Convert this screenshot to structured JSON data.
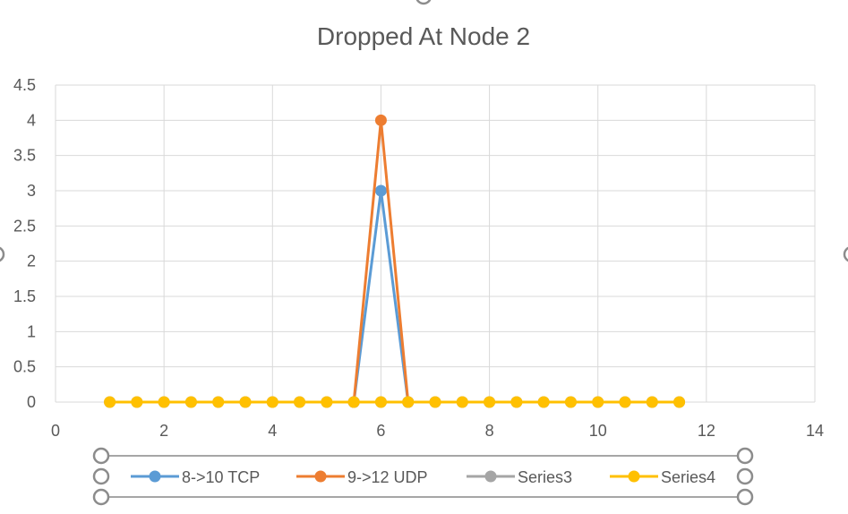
{
  "chart_data": {
    "type": "scatter",
    "title": "Dropped At Node 2",
    "xlabel": "",
    "ylabel": "",
    "xlim": [
      0,
      14
    ],
    "ylim": [
      0,
      4.5
    ],
    "x_ticks": [
      0,
      2,
      4,
      6,
      8,
      10,
      12,
      14
    ],
    "y_ticks": [
      0,
      0.5,
      1,
      1.5,
      2,
      2.5,
      3,
      3.5,
      4,
      4.5
    ],
    "grid": true,
    "legend_position": "bottom",
    "series": [
      {
        "name": "8->10 TCP",
        "color": "#5B9BD5",
        "points": [
          [
            5.5,
            0
          ],
          [
            6,
            3
          ],
          [
            6.5,
            0
          ]
        ]
      },
      {
        "name": "9->12 UDP",
        "color": "#ED7D31",
        "points": [
          [
            5.5,
            0
          ],
          [
            6,
            4
          ],
          [
            6.5,
            0
          ]
        ]
      },
      {
        "name": "Series3",
        "color": "#A5A5A5",
        "points": [
          [
            1,
            0
          ],
          [
            1.5,
            0
          ],
          [
            2,
            0
          ],
          [
            2.5,
            0
          ],
          [
            3,
            0
          ],
          [
            3.5,
            0
          ],
          [
            4,
            0
          ],
          [
            4.5,
            0
          ],
          [
            5,
            0
          ],
          [
            5.5,
            0
          ],
          [
            6,
            0
          ],
          [
            6.5,
            0
          ],
          [
            7,
            0
          ],
          [
            7.5,
            0
          ],
          [
            8,
            0
          ],
          [
            8.5,
            0
          ],
          [
            9,
            0
          ],
          [
            9.5,
            0
          ],
          [
            10,
            0
          ],
          [
            10.5,
            0
          ],
          [
            11,
            0
          ],
          [
            11.5,
            0
          ]
        ]
      },
      {
        "name": "Series4",
        "color": "#FFC000",
        "points": [
          [
            1,
            0
          ],
          [
            1.5,
            0
          ],
          [
            2,
            0
          ],
          [
            2.5,
            0
          ],
          [
            3,
            0
          ],
          [
            3.5,
            0
          ],
          [
            4,
            0
          ],
          [
            4.5,
            0
          ],
          [
            5,
            0
          ],
          [
            5.5,
            0
          ],
          [
            6,
            0
          ],
          [
            6.5,
            0
          ],
          [
            7,
            0
          ],
          [
            7.5,
            0
          ],
          [
            8,
            0
          ],
          [
            8.5,
            0
          ],
          [
            9,
            0
          ],
          [
            9.5,
            0
          ],
          [
            10,
            0
          ],
          [
            10.5,
            0
          ],
          [
            11,
            0
          ],
          [
            11.5,
            0
          ]
        ]
      }
    ]
  }
}
